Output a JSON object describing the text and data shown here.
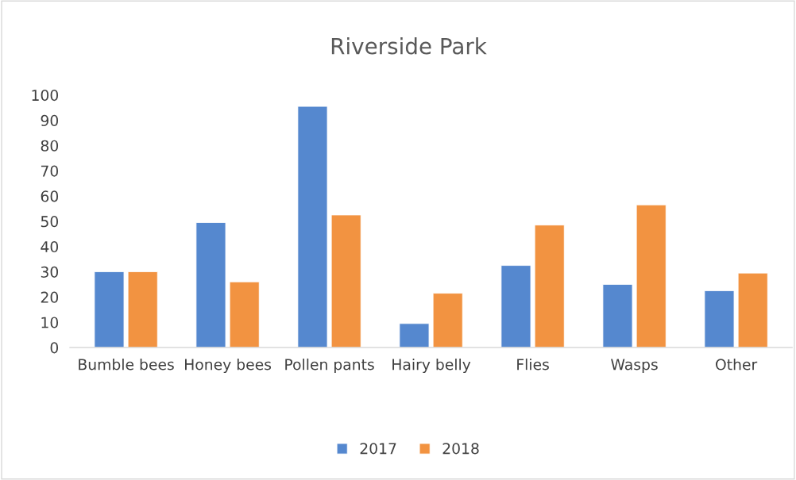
{
  "chart_data": {
    "type": "bar",
    "title": "Riverside Park",
    "categories": [
      "Bumble bees",
      "Honey bees",
      "Pollen pants",
      "Hairy belly",
      "Flies",
      "Wasps",
      "Other"
    ],
    "series": [
      {
        "name": "2017",
        "color": "#5588cf",
        "values": [
          30,
          49.5,
          95.5,
          9.5,
          32.5,
          25,
          22.5
        ]
      },
      {
        "name": "2018",
        "color": "#f29341",
        "values": [
          30,
          26,
          52.5,
          21.5,
          48.5,
          56.5,
          29.5
        ]
      }
    ],
    "ylim": [
      0,
      100
    ],
    "yticks": [
      0,
      10,
      20,
      30,
      40,
      50,
      60,
      70,
      80,
      90,
      100
    ],
    "grid": false,
    "legend": "bottom"
  }
}
